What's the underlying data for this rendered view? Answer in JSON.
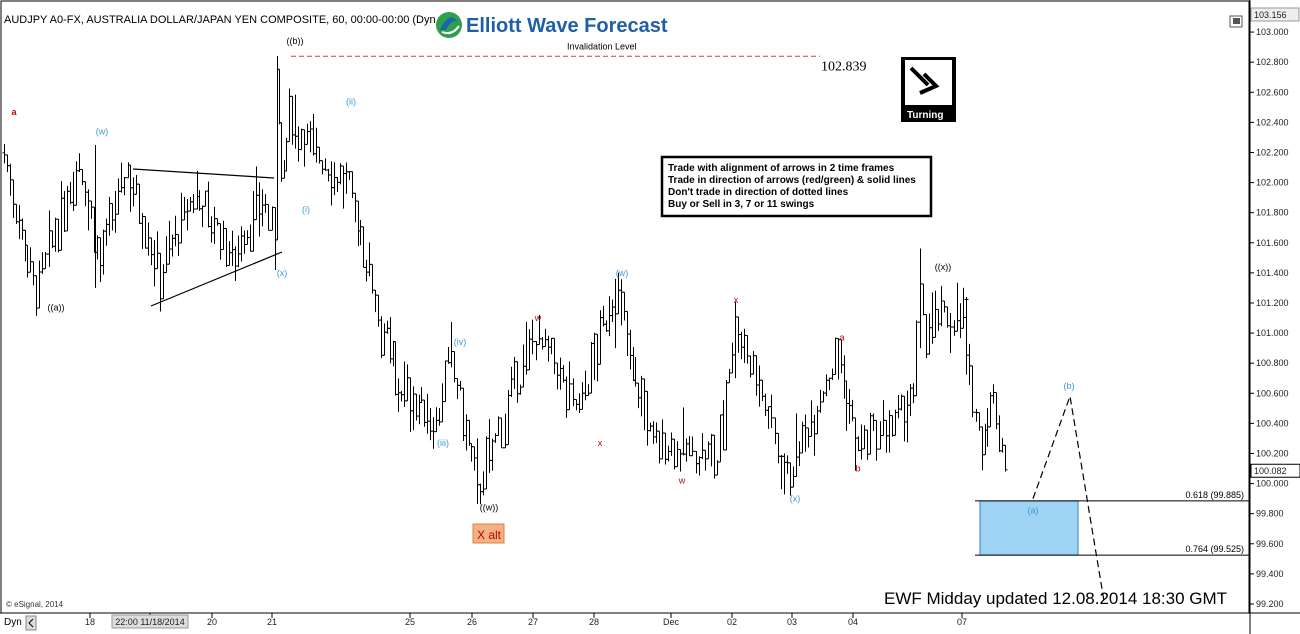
{
  "header": {
    "symbol_line": "AUDJPY A0-FX, AUSTRALIA DOLLAR/JAPAN YEN COMPOSITE, 60, 00:00-00:00 (Dyn",
    "logo_text": "Elliott Wave Forecast"
  },
  "footer": {
    "source": "© eSignal, 2014",
    "dyn": "Dyn",
    "updated": "EWF Midday updated  12.08.2014  18:30 GMT"
  },
  "rules_box": {
    "lines": [
      "Trade with alignment of arrows in 2 time frames",
      "Trade in direction of arrows (red/green) & solid lines",
      "Don't trade in direction of dotted lines",
      "Buy or Sell in 3, 7 or 11 swings"
    ]
  },
  "turning_badge": {
    "label": "Turning",
    "icon": "arrow-down-right-icon"
  },
  "x_alt_label": "X alt",
  "colors": {
    "blue_label": "#3a9ad9",
    "red_label": "#c00000",
    "zone_fill": "#9fd3f3",
    "zone_stroke": "#3a7fb5",
    "invalidation": "#d04040",
    "x_alt_bg": "#f4b183",
    "x_alt_text": "#c00000"
  },
  "chart_data": {
    "type": "ohlc",
    "ylim": [
      99.18,
      103.16
    ],
    "yticks": [
      103.0,
      102.8,
      102.6,
      102.4,
      102.2,
      102.0,
      101.8,
      101.6,
      101.4,
      101.2,
      101.0,
      100.8,
      100.6,
      100.4,
      100.2,
      100.0,
      99.8,
      99.6,
      99.4,
      99.2
    ],
    "ytick_labels": [
      "103.000",
      "102.800",
      "102.600",
      "102.400",
      "102.200",
      "102.000",
      "101.800",
      "101.600",
      "101.400",
      "101.200",
      "101.000",
      "100.800",
      "100.600",
      "100.400",
      "100.200",
      "100.000",
      "99.800",
      "99.600",
      "99.400",
      "99.200"
    ],
    "axis_top_value": "103.156",
    "last_price": {
      "value": 100.082,
      "label": "100.082"
    },
    "x_axis_labels": [
      {
        "label": "18",
        "date": "2014-11-18"
      },
      {
        "label": "22:00 11/18/2014",
        "date": "2014-11-18 22:00"
      },
      {
        "label": "20",
        "date": "2014-11-20"
      },
      {
        "label": "21",
        "date": "2014-11-21"
      },
      {
        "label": "25",
        "date": "2014-11-25"
      },
      {
        "label": "26",
        "date": "2014-11-26"
      },
      {
        "label": "27",
        "date": "2014-11-27"
      },
      {
        "label": "28",
        "date": "2014-11-28"
      },
      {
        "label": "Dec",
        "date": "2014-12-01"
      },
      {
        "label": "02",
        "date": "2014-12-02"
      },
      {
        "label": "03",
        "date": "2014-12-03"
      },
      {
        "label": "04",
        "date": "2014-12-04"
      },
      {
        "label": "07",
        "date": "2014-12-07"
      }
    ],
    "price_path": [
      {
        "date": "2014-11-17 00:00",
        "value": 102.2
      },
      {
        "date": "2014-11-17 09:00",
        "value": 101.25
      },
      {
        "date": "2014-11-17 21:00",
        "value": 102.18
      },
      {
        "date": "2014-11-18 04:00",
        "value": 101.45
      },
      {
        "date": "2014-11-18 15:00",
        "value": 102.1
      },
      {
        "date": "2014-11-19 04:00",
        "value": 101.4
      },
      {
        "date": "2014-11-19 18:00",
        "value": 101.95
      },
      {
        "date": "2014-11-20 08:00",
        "value": 101.5
      },
      {
        "date": "2014-11-20 20:00",
        "value": 101.9
      },
      {
        "date": "2014-11-21 03:00",
        "value": 101.58
      },
      {
        "date": "2014-11-21 05:00",
        "value": 102.83
      },
      {
        "date": "2014-11-21 10:00",
        "value": 101.92
      },
      {
        "date": "2014-11-21 18:00",
        "value": 102.43
      },
      {
        "date": "2014-11-24 03:00",
        "value": 101.95
      },
      {
        "date": "2014-11-24 20:00",
        "value": 100.65
      },
      {
        "date": "2014-11-25 10:00",
        "value": 100.4
      },
      {
        "date": "2014-11-25 16:00",
        "value": 100.85
      },
      {
        "date": "2014-11-26 02:00",
        "value": 99.95
      },
      {
        "date": "2014-11-26 14:00",
        "value": 100.5
      },
      {
        "date": "2014-11-27 01:00",
        "value": 101.0
      },
      {
        "date": "2014-11-27 18:00",
        "value": 100.5
      },
      {
        "date": "2014-11-28 09:00",
        "value": 101.3
      },
      {
        "date": "2014-11-29 00:00",
        "value": 100.3
      },
      {
        "date": "2014-12-01 18:00",
        "value": 100.15
      },
      {
        "date": "2014-12-02 01:00",
        "value": 101.1
      },
      {
        "date": "2014-12-02 12:00",
        "value": 100.6
      },
      {
        "date": "2014-12-02 22:00",
        "value": 100.05
      },
      {
        "date": "2014-12-03 18:00",
        "value": 100.88
      },
      {
        "date": "2014-12-04 02:00",
        "value": 100.22
      },
      {
        "date": "2014-12-04 18:00",
        "value": 100.4
      },
      {
        "date": "2014-12-05 00:00",
        "value": 100.55
      },
      {
        "date": "2014-12-05 06:00",
        "value": 101.3
      },
      {
        "date": "2014-12-05 12:00",
        "value": 101.05
      },
      {
        "date": "2014-12-07 18:00",
        "value": 101.15
      },
      {
        "date": "2014-12-08 00:00",
        "value": 100.75
      },
      {
        "date": "2014-12-08 06:00",
        "value": 100.3
      },
      {
        "date": "2014-12-08 10:00",
        "value": 100.55
      },
      {
        "date": "2014-12-08 16:00",
        "value": 100.08
      }
    ],
    "invalidation": {
      "value": 102.839,
      "label": "102.839",
      "text": "Invalidation Level"
    },
    "fib_levels": [
      {
        "value": 99.885,
        "label": "0.618 (99.885)"
      },
      {
        "value": 99.525,
        "label": "0.764 (99.525)"
      }
    ],
    "wave_labels": [
      {
        "text": "a",
        "date": "2014-11-17 01:00",
        "value": 102.45,
        "color": "red",
        "bold": true
      },
      {
        "text": "(w)",
        "date": "2014-11-18 02:00",
        "value": 102.32,
        "color": "blue"
      },
      {
        "text": "((a))",
        "date": "2014-11-17 10:00",
        "value": 101.15,
        "color": "black"
      },
      {
        "text": "(x)",
        "date": "2014-11-21 03:00",
        "value": 101.38,
        "color": "blue"
      },
      {
        "text": "((b))",
        "date": "2014-11-21 05:00",
        "value": 102.92,
        "color": "black"
      },
      {
        "text": "(i)",
        "date": "2014-11-21 09:00",
        "value": 101.8,
        "color": "blue"
      },
      {
        "text": "(ii)",
        "date": "2014-11-21 18:00",
        "value": 102.52,
        "color": "blue"
      },
      {
        "text": "(iii)",
        "date": "2014-11-25 10:00",
        "value": 100.25,
        "color": "blue"
      },
      {
        "text": "(iv)",
        "date": "2014-11-25 16:00",
        "value": 100.92,
        "color": "blue"
      },
      {
        "text": "((w))",
        "date": "2014-11-26 02:00",
        "value": 99.82,
        "color": "black"
      },
      {
        "text": "w",
        "date": "2014-11-27 01:00",
        "value": 101.08,
        "color": "red"
      },
      {
        "text": "(w)",
        "date": "2014-11-28 09:00",
        "value": 101.38,
        "color": "blue"
      },
      {
        "text": "x",
        "date": "2014-11-28 18:00",
        "value": 100.25,
        "color": "red"
      },
      {
        "text": "w",
        "date": "2014-12-01 18:00",
        "value": 100.0,
        "color": "red"
      },
      {
        "text": "x",
        "date": "2014-12-02 01:00",
        "value": 101.2,
        "color": "red"
      },
      {
        "text": "(x)",
        "date": "2014-12-03 00:00",
        "value": 99.88,
        "color": "blue"
      },
      {
        "text": "a",
        "date": "2014-12-03 18:00",
        "value": 100.95,
        "color": "red"
      },
      {
        "text": "b",
        "date": "2014-12-04 02:00",
        "value": 100.08,
        "color": "red"
      },
      {
        "text": "((x))",
        "date": "2014-12-05 06:00",
        "value": 101.42,
        "color": "black"
      },
      {
        "text": "(a)",
        "date": "2014-12-08 18:00",
        "value": 99.8,
        "color": "blue"
      },
      {
        "text": "(b)",
        "date": "2014-12-09 10:00",
        "value": 100.63,
        "color": "blue"
      }
    ],
    "triangle_lines": [
      {
        "from": {
          "date": "2014-11-18 06:00",
          "value": 102.08
        },
        "to": {
          "date": "2014-11-20 20:00",
          "value": 102.03
        }
      },
      {
        "from": {
          "date": "2014-11-17 18:00",
          "value": 101.15
        },
        "to": {
          "date": "2014-11-20 22:00",
          "value": 101.5
        }
      }
    ],
    "projection": [
      {
        "date": "2014-12-08 16:00",
        "value": 99.9
      },
      {
        "date": "2014-12-09 10:00",
        "value": 100.58
      },
      {
        "date": "2014-12-09 18:00",
        "value": 99.22
      }
    ],
    "target_zone": {
      "from": "2014-12-08 16:00",
      "to": "2014-12-09 10:00",
      "top": 99.885,
      "bottom": 99.525
    }
  }
}
